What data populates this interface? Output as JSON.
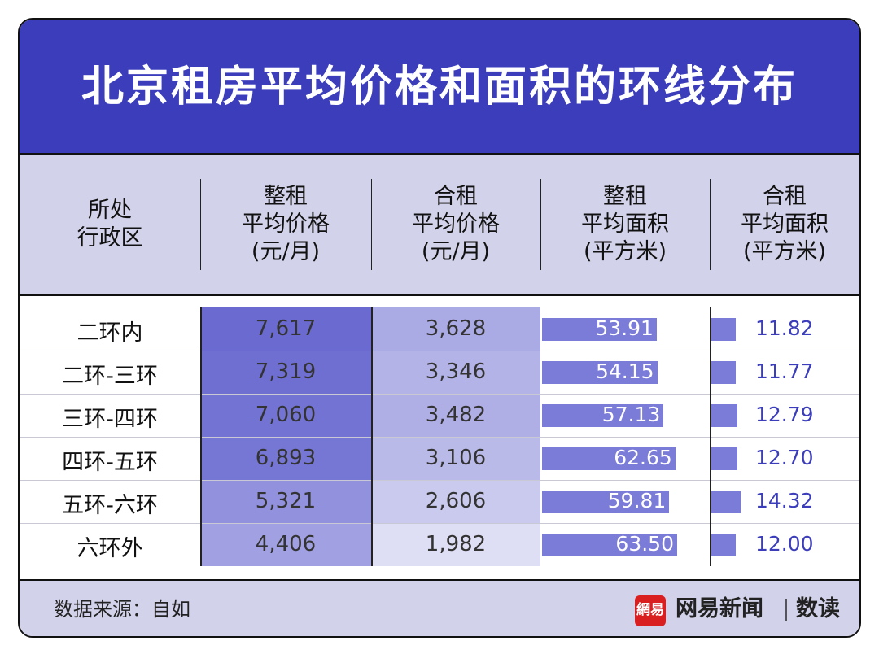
{
  "title": "北京租房平均价格和面积的环线分布",
  "headers": {
    "col0": [
      "所处",
      "行政区"
    ],
    "col1": [
      "整租",
      "平均价格",
      "(元/月)"
    ],
    "col2": [
      "合租",
      "平均价格",
      "(元/月)"
    ],
    "col3": [
      "整租",
      "平均面积",
      "(平方米)"
    ],
    "col4": [
      "合租",
      "平均面积",
      "(平方米)"
    ]
  },
  "chart_data": {
    "type": "table",
    "title": "北京租房平均价格和面积的环线分布",
    "columns": [
      "所处行政区",
      "整租平均价格(元/月)",
      "合租平均价格(元/月)",
      "整租平均面积(平方米)",
      "合租平均面积(平方米)"
    ],
    "rows": [
      {
        "area": "二环内",
        "whole_price": "7,617",
        "shared_price": "3,628",
        "whole_size": "53.91",
        "shared_size": "11.82"
      },
      {
        "area": "二环-三环",
        "whole_price": "7,319",
        "shared_price": "3,346",
        "whole_size": "54.15",
        "shared_size": "11.77"
      },
      {
        "area": "三环-四环",
        "whole_price": "7,060",
        "shared_price": "3,482",
        "whole_size": "57.13",
        "shared_size": "12.79"
      },
      {
        "area": "四环-五环",
        "whole_price": "6,893",
        "shared_price": "3,106",
        "whole_size": "62.65",
        "shared_size": "12.70"
      },
      {
        "area": "五环-六环",
        "whole_price": "5,321",
        "shared_price": "2,606",
        "whole_size": "59.81",
        "shared_size": "14.32"
      },
      {
        "area": "六环外",
        "whole_price": "4,406",
        "shared_price": "1,982",
        "whole_size": "63.50",
        "shared_size": "12.00"
      }
    ]
  },
  "footer": {
    "source": "数据来源：自如",
    "brand_logo": "網易",
    "brand": "网易新闻",
    "brand2": "数读"
  },
  "colors": {
    "title_bg": "#3b3dbb",
    "header_bg": "#d2d2ea",
    "bar": "#7b7bd8",
    "accent_text": "#3b3dbb"
  }
}
